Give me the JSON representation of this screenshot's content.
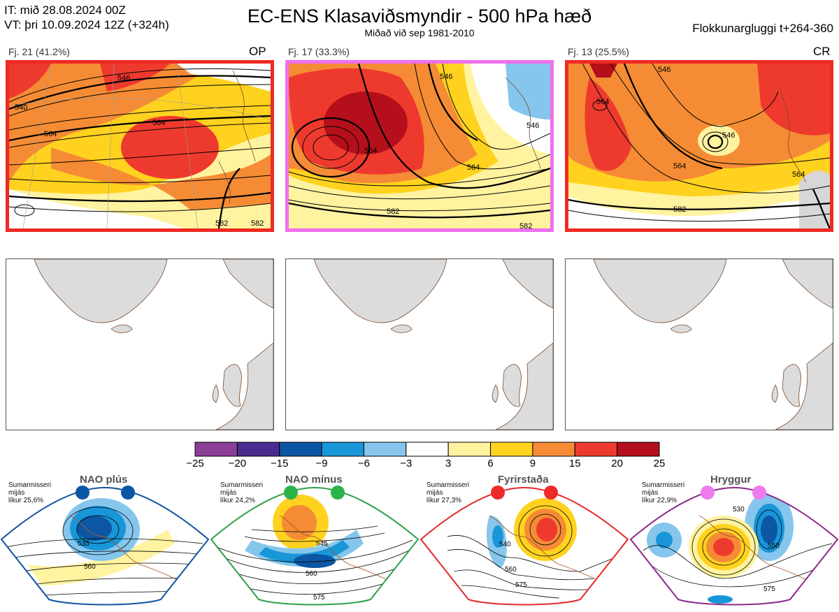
{
  "header": {
    "init_time": "IT: mið 28.08.2024 00Z",
    "valid_time": "VT: þri 10.09.2024 12Z  (+324h)",
    "title": "EC-ENS Klasaviðsmyndir - 500 hPa hæð",
    "subtitle": "Miðað við sep 1981-2010",
    "window": "Flokkunargluggi t+264-360"
  },
  "clusters": [
    {
      "label": "Fj. 21 (41.2%)",
      "tag": "OP",
      "border_color": "#ee2a24",
      "contours": [
        "540",
        "546",
        "564",
        "564",
        "582",
        "582"
      ]
    },
    {
      "label": "Fj. 17 (33.3%)",
      "tag": "",
      "border_color": "#ee70ee",
      "contours": [
        "564",
        "546",
        "564",
        "582",
        "582",
        "546"
      ]
    },
    {
      "label": "Fj. 13 (25.5%)",
      "tag": "CR",
      "border_color": "#ee2a24",
      "contours": [
        "546",
        "564",
        "564",
        "546",
        "582",
        "564"
      ]
    }
  ],
  "colorbar": {
    "labels": [
      "−25",
      "−20",
      "−15",
      "−9",
      "−6",
      "−3",
      "3",
      "6",
      "9",
      "15",
      "20",
      "25"
    ],
    "colors": [
      "#8b3f96",
      "#4a2c8f",
      "#0c56a3",
      "#1996d8",
      "#86c6ec",
      "#ffffff",
      "#fff3a0",
      "#ffd21f",
      "#f58c35",
      "#ee3a2e",
      "#b40f1b"
    ]
  },
  "regimes": [
    {
      "name": "NAO plús",
      "note": [
        "Sumarmisseri",
        "mijás",
        "líkur 25,6%"
      ],
      "dot_color": "#0b56a4",
      "border_color": "#1253a0",
      "contours": [
        "535",
        "560"
      ]
    },
    {
      "name": "NAO mínus",
      "note": [
        "Sumarmisseri",
        "mijás",
        "líkur 24,2%"
      ],
      "dot_color": "#2bb34a",
      "border_color": "#2ea14a",
      "contours": [
        "545",
        "560",
        "575"
      ]
    },
    {
      "name": "Fyrirstaða",
      "note": [
        "Sumarmisseri",
        "mijás",
        "líkur 27,3%"
      ],
      "dot_color": "#ee2a2a",
      "border_color": "#e52a2a",
      "contours": [
        "540",
        "560",
        "575"
      ]
    },
    {
      "name": "Hryggur",
      "note": [
        "Sumarmisseri",
        "mijás",
        "líkur 22,9%"
      ],
      "dot_color": "#f07af0",
      "border_color": "#8a2a8a",
      "contours": [
        "530",
        "550",
        "575"
      ]
    }
  ]
}
